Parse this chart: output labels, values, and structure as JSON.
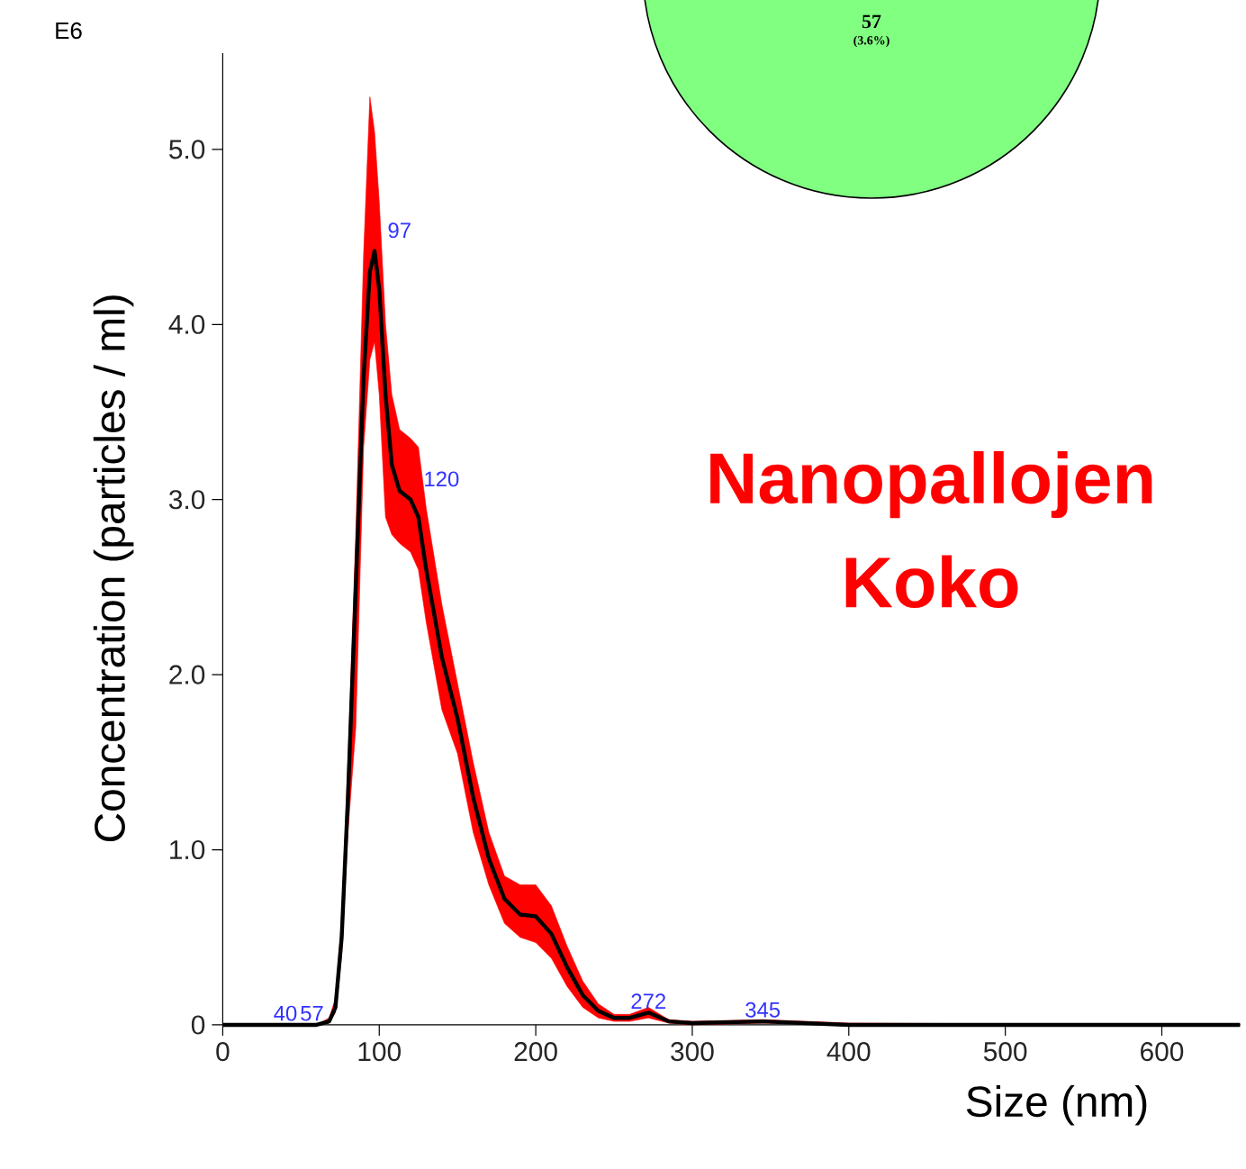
{
  "chart_data": {
    "type": "line",
    "xlabel": "Size (nm)",
    "ylabel": "Concentration (particles / ml)",
    "x": [
      0,
      60,
      68,
      72,
      76,
      80,
      85,
      90,
      94,
      97,
      100,
      104,
      108,
      113,
      120,
      125,
      130,
      140,
      150,
      160,
      170,
      180,
      190,
      200,
      210,
      220,
      230,
      240,
      250,
      260,
      272,
      285,
      300,
      345,
      400,
      650
    ],
    "series": [
      {
        "color": "#000000",
        "values": [
          0,
          0,
          0.02,
          0.1,
          0.5,
          1.3,
          2.5,
          3.7,
          4.3,
          4.42,
          4.2,
          3.6,
          3.2,
          3.05,
          3.0,
          2.9,
          2.6,
          2.1,
          1.75,
          1.3,
          0.95,
          0.72,
          0.63,
          0.62,
          0.52,
          0.33,
          0.17,
          0.08,
          0.04,
          0.04,
          0.07,
          0.02,
          0.01,
          0.02,
          0,
          0
        ],
        "lower": [
          0,
          0,
          0.01,
          0.07,
          0.4,
          1.1,
          1.7,
          3.3,
          3.8,
          3.9,
          3.6,
          2.9,
          2.8,
          2.75,
          2.7,
          2.6,
          2.3,
          1.8,
          1.55,
          1.1,
          0.8,
          0.58,
          0.5,
          0.47,
          0.38,
          0.22,
          0.1,
          0.04,
          0.02,
          0.02,
          0.04,
          0.01,
          0,
          0.01,
          0,
          0
        ],
        "upper": [
          0,
          0,
          0.04,
          0.15,
          0.6,
          1.5,
          2.8,
          4.4,
          5.3,
          5.1,
          4.7,
          4.0,
          3.6,
          3.4,
          3.35,
          3.3,
          2.95,
          2.4,
          1.95,
          1.5,
          1.1,
          0.85,
          0.8,
          0.8,
          0.68,
          0.45,
          0.25,
          0.12,
          0.06,
          0.06,
          0.1,
          0.03,
          0.02,
          0.03,
          0.01,
          0
        ]
      }
    ],
    "xlim": [
      0,
      650
    ],
    "ylim": [
      0,
      5.55
    ],
    "xticks": [
      0,
      100,
      200,
      300,
      400,
      500,
      600
    ],
    "yticks": [
      {
        "value": 0,
        "label": "0"
      },
      {
        "value": 1,
        "label": "1.0"
      },
      {
        "value": 2,
        "label": "2.0"
      },
      {
        "value": 3,
        "label": "3.0"
      },
      {
        "value": 4,
        "label": "4.0"
      },
      {
        "value": 5,
        "label": "5.0"
      }
    ],
    "grid": false,
    "marker": "none",
    "line_style": "solid",
    "annotations": [
      "E6",
      "Nanopallojen Koko",
      "57",
      "(3.6%)",
      {
        "text": "40",
        "x": 40,
        "y": 0
      },
      {
        "text": "57",
        "x": 57,
        "y": 0
      },
      {
        "text": "97",
        "x": 97,
        "y": 4.42
      },
      {
        "text": "120",
        "x": 120,
        "y": 3.0
      },
      {
        "text": "272",
        "x": 272,
        "y": 0.07
      },
      {
        "text": "345",
        "x": 345,
        "y": 0.02
      }
    ]
  }
}
